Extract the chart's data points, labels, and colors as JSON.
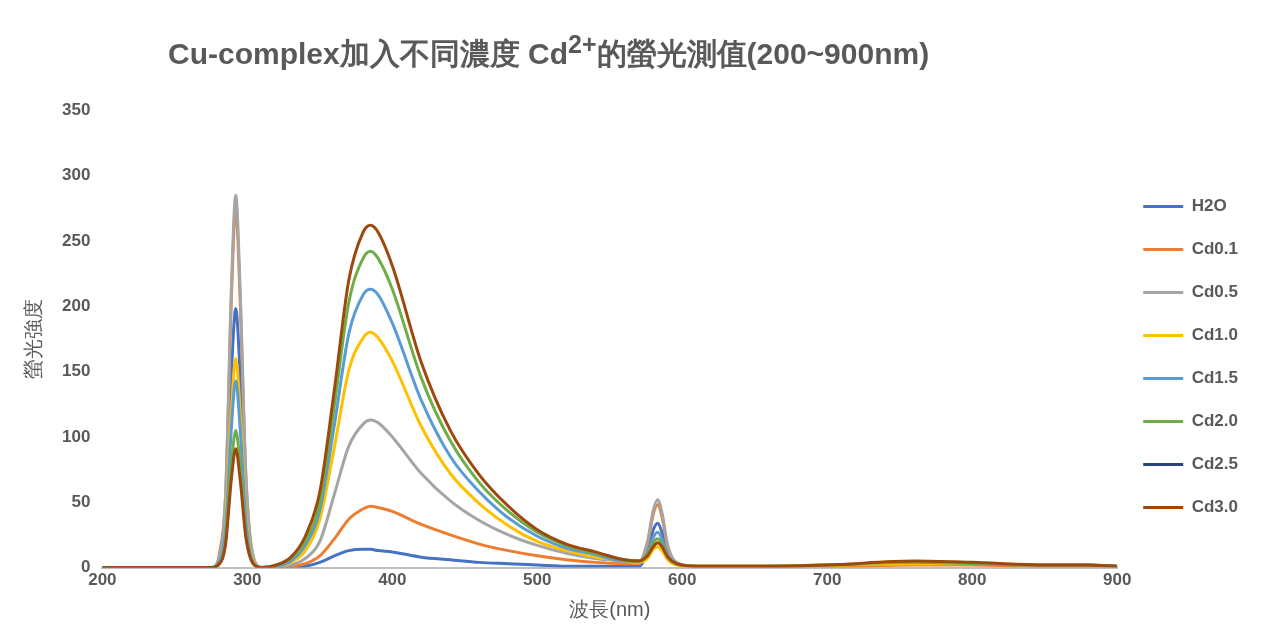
{
  "chart_data": {
    "type": "line",
    "title": "Cu-complex加入不同濃度 Cd$^{2+}$的螢光測值(200~900nm)",
    "xlabel": "波長(nm)",
    "ylabel": "螢光強度",
    "x": [
      200,
      275,
      280,
      285,
      289,
      292,
      295,
      299,
      304,
      310,
      320,
      330,
      340,
      350,
      360,
      370,
      380,
      385,
      390,
      400,
      420,
      440,
      460,
      480,
      500,
      520,
      540,
      560,
      570,
      576,
      580,
      583,
      586,
      590,
      596,
      610,
      650,
      700,
      760,
      800,
      850,
      880,
      900
    ],
    "xlim": [
      200,
      900
    ],
    "xticks": [
      200,
      300,
      400,
      500,
      600,
      700,
      800,
      900
    ],
    "ylim": [
      0,
      350
    ],
    "yticks": [
      0,
      50,
      100,
      150,
      200,
      250,
      300,
      350
    ],
    "grid": false,
    "legend": "right",
    "marker": "none",
    "line_style": "solid",
    "series": [
      {
        "name": "H2O",
        "color": "#4472c4",
        "values": [
          0,
          0,
          4,
          40,
          149,
          198,
          149,
          50,
          6,
          0,
          0,
          0,
          1,
          4,
          9,
          13,
          14,
          14,
          13,
          12,
          8,
          6,
          4,
          3,
          2,
          1,
          1,
          1,
          1,
          12,
          29,
          34,
          27,
          11,
          2,
          null,
          null,
          null,
          null,
          null,
          null,
          null,
          null
        ]
      },
      {
        "name": "Cd0.1",
        "color": "#ed7d31",
        "values": [
          null,
          null,
          5,
          55,
          206,
          275,
          206,
          69,
          8,
          0,
          0,
          1,
          3,
          9,
          22,
          37,
          45,
          47,
          46,
          43,
          33,
          25,
          18,
          13,
          9,
          6,
          4,
          3,
          3,
          18,
          41,
          48,
          39,
          15,
          3,
          1,
          1,
          1,
          2,
          2,
          1,
          1,
          1
        ]
      },
      {
        "name": "Cd0.5",
        "color": "#a5a5a5",
        "values": [
          0,
          0,
          6,
          57,
          214,
          285,
          214,
          71,
          9,
          0,
          1,
          2,
          7,
          20,
          56,
          93,
          110,
          113,
          111,
          100,
          72,
          51,
          36,
          25,
          17,
          11,
          7,
          5,
          4,
          20,
          44,
          52,
          42,
          17,
          4,
          1,
          1,
          2,
          3,
          3,
          2,
          2,
          1
        ]
      },
      {
        "name": "Cd1.0",
        "color": "#ffc000",
        "values": [
          null,
          null,
          null,
          32,
          120,
          160,
          120,
          40,
          5,
          0,
          1,
          4,
          13,
          37,
          92,
          151,
          176,
          180,
          176,
          158,
          108,
          72,
          49,
          32,
          20,
          13,
          8,
          5,
          4,
          7,
          14,
          16,
          13,
          6,
          2,
          1,
          1,
          2,
          3,
          3,
          null,
          null,
          null
        ]
      },
      {
        "name": "Cd1.5",
        "color": "#5b9bd5",
        "values": [
          0,
          0,
          3,
          29,
          107,
          143,
          107,
          36,
          4,
          0,
          1,
          5,
          17,
          44,
          109,
          179,
          209,
          213,
          209,
          187,
          128,
          85,
          58,
          38,
          24,
          15,
          10,
          5,
          5,
          11,
          23,
          27,
          22,
          9,
          3,
          null,
          null,
          null,
          null,
          null,
          null,
          null,
          null
        ]
      },
      {
        "name": "Cd2.0",
        "color": "#70ad47",
        "values": [
          0,
          0,
          2,
          21,
          79,
          105,
          79,
          26,
          3,
          0,
          2,
          7,
          20,
          50,
          124,
          203,
          237,
          242,
          237,
          213,
          145,
          97,
          65,
          43,
          27,
          17,
          11,
          6,
          5,
          10,
          19,
          22,
          18,
          8,
          3,
          1,
          1,
          2,
          4,
          3,
          2,
          2,
          1
        ]
      },
      {
        "name": "Cd2.5",
        "color": "#264478",
        "values": [
          null,
          null,
          null,
          null,
          null,
          null,
          null,
          null,
          null,
          null,
          null,
          null,
          null,
          null,
          null,
          null,
          null,
          null,
          null,
          null,
          null,
          null,
          null,
          null,
          null,
          null,
          null,
          null,
          null,
          null,
          null,
          null,
          null,
          null,
          null,
          null,
          null,
          null,
          null,
          null,
          null,
          null,
          null
        ]
      },
      {
        "name": "Cd3.0",
        "color": "#9e480e",
        "values": [
          0,
          0,
          2,
          18,
          68,
          91,
          68,
          23,
          3,
          0,
          2,
          8,
          24,
          58,
          136,
          220,
          257,
          262,
          257,
          231,
          157,
          105,
          71,
          47,
          29,
          18,
          12,
          6,
          5,
          9,
          16,
          19,
          16,
          8,
          3,
          1,
          1,
          2,
          5,
          4,
          2,
          2,
          1
        ]
      }
    ]
  }
}
